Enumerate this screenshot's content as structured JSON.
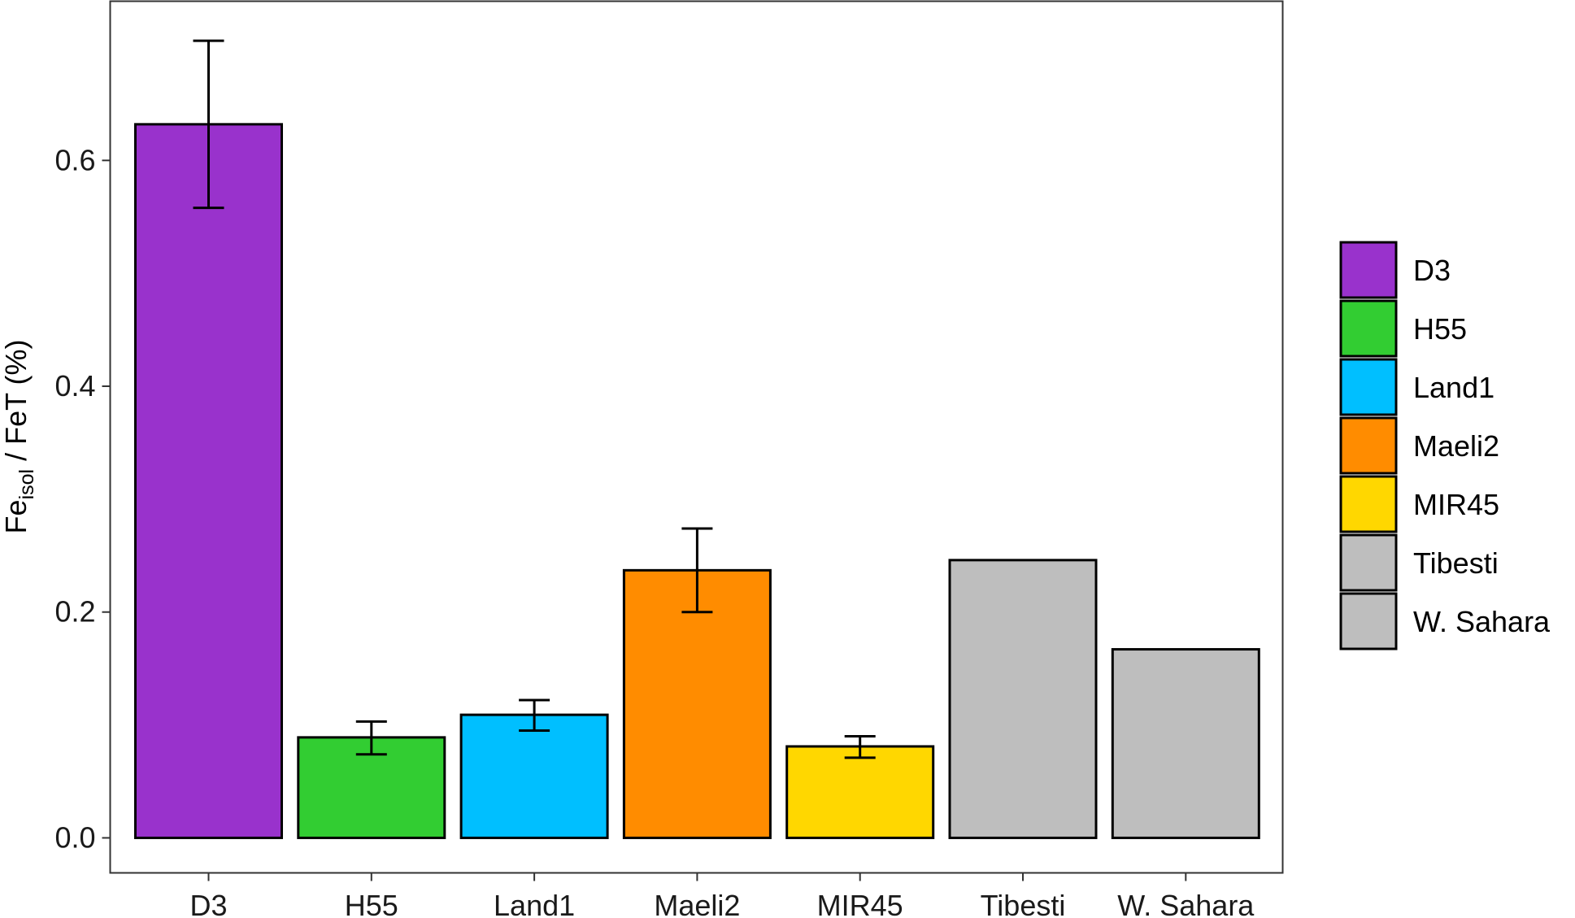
{
  "chart_data": {
    "type": "bar",
    "categories": [
      "D3",
      "H55",
      "Land1",
      "Maeli2",
      "MIR45",
      "Tibesti",
      "W. Sahara"
    ],
    "values": [
      0.632,
      0.089,
      0.109,
      0.237,
      0.081,
      0.246,
      0.167
    ],
    "error_bars": [
      {
        "low": 0.558,
        "high": 0.706
      },
      {
        "low": 0.074,
        "high": 0.103
      },
      {
        "low": 0.095,
        "high": 0.122
      },
      {
        "low": 0.2,
        "high": 0.274
      },
      {
        "low": 0.071,
        "high": 0.09
      },
      null,
      null
    ],
    "colors": [
      "#9932CC",
      "#32CD32",
      "#00BFFF",
      "#FF8C00",
      "#FFD700",
      "#BEBEBE",
      "#BEBEBE"
    ],
    "ylabel": {
      "main": "Fe",
      "sub": "isol",
      "rest": " / FeT (%)"
    },
    "y_ticks": [
      "0.0",
      "0.2",
      "0.4",
      "0.6"
    ],
    "ylim": [
      -0.031,
      0.741
    ],
    "grid": false,
    "legend": {
      "position": "right",
      "entries": [
        "D3",
        "H55",
        "Land1",
        "Maeli2",
        "MIR45",
        "Tibesti",
        "W. Sahara"
      ]
    }
  }
}
